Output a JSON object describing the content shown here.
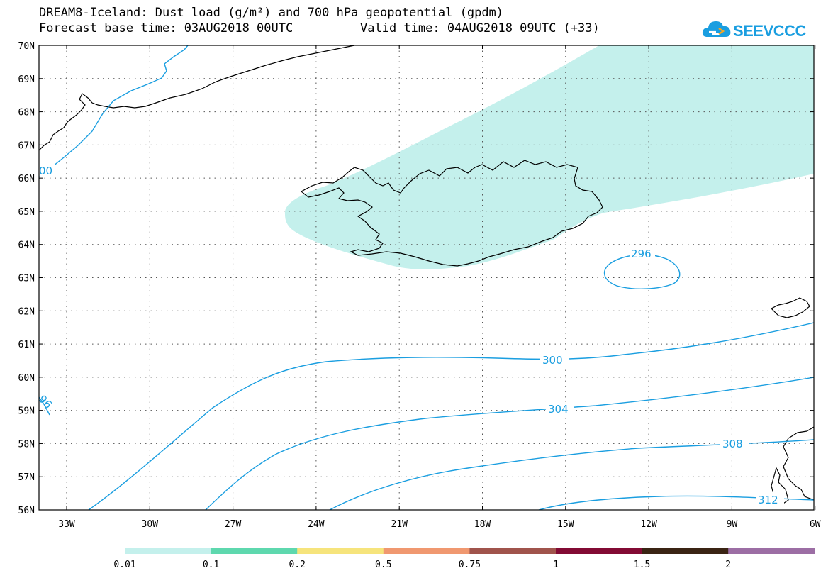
{
  "header": {
    "title_line1": "DREAM8-Iceland: Dust load (g/m²) and 700 hPa geopotential (gpdm)",
    "base_time": "Forecast base time: 03AUG2018 00UTC",
    "valid_time": "Valid time: 04AUG2018 09UTC (+33)"
  },
  "logo": {
    "text": "SEEVCCC",
    "icon": "cloud-icon",
    "color": "#1a9ee0"
  },
  "map": {
    "lat_labels": [
      "70N",
      "69N",
      "68N",
      "67N",
      "66N",
      "65N",
      "64N",
      "63N",
      "62N",
      "61N",
      "60N",
      "59N",
      "58N",
      "57N",
      "56N"
    ],
    "lon_labels": [
      "33W",
      "30W",
      "27W",
      "24W",
      "21W",
      "18W",
      "15W",
      "12W",
      "9W",
      "6W"
    ],
    "contour_labels": [
      "296",
      "300",
      "304",
      "308",
      "312",
      "00",
      "96"
    ],
    "contour_color": "#1a9ee0",
    "dust_fill_color": "#c4f0ec"
  },
  "legend": {
    "ticks": [
      "0.01",
      "0.1",
      "0.2",
      "0.5",
      "0.75",
      "1",
      "1.5",
      "2"
    ],
    "colors": [
      "#c4f0ec",
      "#5ed8ae",
      "#f6e47c",
      "#f09870",
      "#a0544c",
      "#820a34",
      "#3a2414",
      "#9c6ea4"
    ]
  }
}
